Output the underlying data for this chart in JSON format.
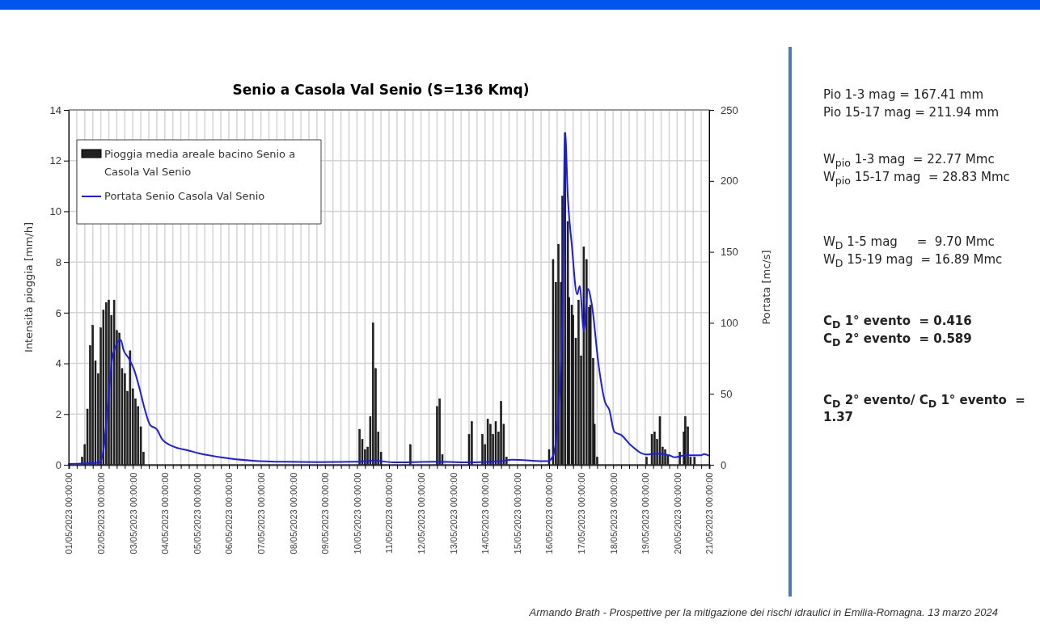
{
  "chart_data": {
    "type": "bar",
    "title": "Senio a Casola Val Senio (S=136 Kmq)",
    "ylabel": "Intensità pioggia  [mm/h]",
    "y2label": "Portata [mc/s]",
    "xlim": [
      "2023-05-01",
      "2023-05-21"
    ],
    "xticks": [
      {
        "value": "2023-05-01",
        "label": "01/05/2023 00:00:00"
      },
      {
        "value": "2023-05-01T06:00",
        "label": null
      },
      {
        "value": "2023-05-01T12:00",
        "label": null
      },
      {
        "value": "2023-05-01T18:00",
        "label": null
      },
      {
        "value": "2023-05-02",
        "label": "02/05/2023 00:00:00"
      },
      {
        "value": "2023-05-02T06:00",
        "label": null
      },
      {
        "value": "2023-05-02T12:00",
        "label": null
      },
      {
        "value": "2023-05-02T18:00",
        "label": null
      },
      {
        "value": "2023-05-03",
        "label": "03/05/2023 00:00:00"
      },
      {
        "value": "2023-05-03T06:00",
        "label": null
      },
      {
        "value": "2023-05-03T12:00",
        "label": null
      },
      {
        "value": "2023-05-03T18:00",
        "label": null
      },
      {
        "value": "2023-05-04",
        "label": "04/05/2023 00:00:00"
      },
      {
        "value": "2023-05-04T06:00",
        "label": null
      },
      {
        "value": "2023-05-04T12:00",
        "label": null
      },
      {
        "value": "2023-05-04T18:00",
        "label": null
      },
      {
        "value": "2023-05-05",
        "label": "05/05/2023 00:00:00"
      },
      {
        "value": "2023-05-05T06:00",
        "label": null
      },
      {
        "value": "2023-05-05T12:00",
        "label": null
      },
      {
        "value": "2023-05-05T18:00",
        "label": null
      },
      {
        "value": "2023-05-06",
        "label": "06/05/2023 00:00:00"
      },
      {
        "value": "2023-05-06T06:00",
        "label": null
      },
      {
        "value": "2023-05-06T12:00",
        "label": null
      },
      {
        "value": "2023-05-06T18:00",
        "label": null
      },
      {
        "value": "2023-05-07",
        "label": "07/05/2023 00:00:00"
      },
      {
        "value": "2023-05-07T06:00",
        "label": null
      },
      {
        "value": "2023-05-07T12:00",
        "label": null
      },
      {
        "value": "2023-05-07T18:00",
        "label": null
      },
      {
        "value": "2023-05-08",
        "label": "08/05/2023 00:00:00"
      },
      {
        "value": "2023-05-08T06:00",
        "label": null
      },
      {
        "value": "2023-05-08T12:00",
        "label": null
      },
      {
        "value": "2023-05-08T18:00",
        "label": null
      },
      {
        "value": "2023-05-09",
        "label": "09/05/2023 00:00:00"
      },
      {
        "value": "2023-05-09T06:00",
        "label": null
      },
      {
        "value": "2023-05-09T12:00",
        "label": null
      },
      {
        "value": "2023-05-09T18:00",
        "label": null
      },
      {
        "value": "2023-05-10",
        "label": "10/05/2023 00:00:00"
      },
      {
        "value": "2023-05-10T06:00",
        "label": null
      },
      {
        "value": "2023-05-10T12:00",
        "label": null
      },
      {
        "value": "2023-05-10T18:00",
        "label": null
      },
      {
        "value": "2023-05-11",
        "label": "11/05/2023 00:00:00"
      },
      {
        "value": "2023-05-11T06:00",
        "label": null
      },
      {
        "value": "2023-05-11T12:00",
        "label": null
      },
      {
        "value": "2023-05-11T18:00",
        "label": null
      },
      {
        "value": "2023-05-12",
        "label": "12/05/2023 00:00:00"
      },
      {
        "value": "2023-05-12T06:00",
        "label": null
      },
      {
        "value": "2023-05-12T12:00",
        "label": null
      },
      {
        "value": "2023-05-12T18:00",
        "label": null
      },
      {
        "value": "2023-05-13",
        "label": "13/05/2023 00:00:00"
      },
      {
        "value": "2023-05-13T06:00",
        "label": null
      },
      {
        "value": "2023-05-13T12:00",
        "label": null
      },
      {
        "value": "2023-05-13T18:00",
        "label": null
      },
      {
        "value": "2023-05-14",
        "label": "14/05/2023 00:00:00"
      },
      {
        "value": "2023-05-14T06:00",
        "label": null
      },
      {
        "value": "2023-05-14T12:00",
        "label": null
      },
      {
        "value": "2023-05-14T18:00",
        "label": null
      },
      {
        "value": "2023-05-15",
        "label": "15/05/2023 00:00:00"
      },
      {
        "value": "2023-05-15T06:00",
        "label": null
      },
      {
        "value": "2023-05-15T12:00",
        "label": null
      },
      {
        "value": "2023-05-15T18:00",
        "label": null
      },
      {
        "value": "2023-05-16",
        "label": "16/05/2023 00:00:00"
      },
      {
        "value": "2023-05-16T06:00",
        "label": null
      },
      {
        "value": "2023-05-16T12:00",
        "label": null
      },
      {
        "value": "2023-05-16T18:00",
        "label": null
      },
      {
        "value": "2023-05-17",
        "label": "17/05/2023 00:00:00"
      },
      {
        "value": "2023-05-17T06:00",
        "label": null
      },
      {
        "value": "2023-05-17T12:00",
        "label": null
      },
      {
        "value": "2023-05-17T18:00",
        "label": null
      },
      {
        "value": "2023-05-18",
        "label": "18/05/2023 00:00:00"
      },
      {
        "value": "2023-05-18T06:00",
        "label": null
      },
      {
        "value": "2023-05-18T12:00",
        "label": null
      },
      {
        "value": "2023-05-18T18:00",
        "label": null
      },
      {
        "value": "2023-05-19",
        "label": "19/05/2023 00:00:00"
      },
      {
        "value": "2023-05-19T06:00",
        "label": null
      },
      {
        "value": "2023-05-19T12:00",
        "label": null
      },
      {
        "value": "2023-05-19T18:00",
        "label": null
      },
      {
        "value": "2023-05-20",
        "label": "20/05/2023 00:00:00"
      },
      {
        "value": "2023-05-20T06:00",
        "label": null
      },
      {
        "value": "2023-05-20T12:00",
        "label": null
      },
      {
        "value": "2023-05-20T18:00",
        "label": null
      },
      {
        "value": "2023-05-21",
        "label": "21/05/2023 00:00:00"
      }
    ],
    "ylim": [
      0,
      14
    ],
    "yticks": [
      0,
      2,
      4,
      6,
      8,
      10,
      12,
      14
    ],
    "y2lim": [
      0,
      250
    ],
    "y2ticks": [
      0,
      50,
      100,
      150,
      200,
      250
    ],
    "grid": true,
    "legend": "top left",
    "series": [
      {
        "name": "Pioggia media areale bacino Senio a Casola Val Senio",
        "color": "#222222",
        "x": [
          "2023-05-01T10:00",
          "2023-05-01T12:00",
          "2023-05-01T14:00",
          "2023-05-01T16:00",
          "2023-05-01T18:00",
          "2023-05-01T20:00",
          "2023-05-01T22:00",
          "2023-05-02T00:00",
          "2023-05-02T02:00",
          "2023-05-02T04:00",
          "2023-05-02T06:00",
          "2023-05-02T08:00",
          "2023-05-02T10:00",
          "2023-05-02T12:00",
          "2023-05-02T14:00",
          "2023-05-02T16:00",
          "2023-05-02T18:00",
          "2023-05-02T20:00",
          "2023-05-02T22:00",
          "2023-05-03T00:00",
          "2023-05-03T02:00",
          "2023-05-03T04:00",
          "2023-05-03T06:00",
          "2023-05-03T08:00",
          "2023-05-10T02:00",
          "2023-05-10T04:00",
          "2023-05-10T06:00",
          "2023-05-10T08:00",
          "2023-05-10T10:00",
          "2023-05-10T12:00",
          "2023-05-10T14:00",
          "2023-05-10T16:00",
          "2023-05-10T18:00",
          "2023-05-11T16:00",
          "2023-05-12T12:00",
          "2023-05-12T14:00",
          "2023-05-12T16:00",
          "2023-05-13T12:00",
          "2023-05-13T14:00",
          "2023-05-13T22:00",
          "2023-05-14T00:00",
          "2023-05-14T02:00",
          "2023-05-14T04:00",
          "2023-05-14T06:00",
          "2023-05-14T08:00",
          "2023-05-14T10:00",
          "2023-05-14T12:00",
          "2023-05-14T14:00",
          "2023-05-14T16:00",
          "2023-05-16T00:00",
          "2023-05-16T03:00",
          "2023-05-16T05:00",
          "2023-05-16T07:00",
          "2023-05-16T09:00",
          "2023-05-16T10:00",
          "2023-05-16T12:00",
          "2023-05-16T14:00",
          "2023-05-16T15:00",
          "2023-05-16T17:00",
          "2023-05-16T18:00",
          "2023-05-16T20:00",
          "2023-05-16T22:00",
          "2023-05-17T00:00",
          "2023-05-17T02:00",
          "2023-05-17T04:00",
          "2023-05-17T06:00",
          "2023-05-17T07:00",
          "2023-05-17T09:00",
          "2023-05-17T10:00",
          "2023-05-17T12:00",
          "2023-05-19T01:00",
          "2023-05-19T05:00",
          "2023-05-19T07:00",
          "2023-05-19T09:00",
          "2023-05-19T11:00",
          "2023-05-19T13:00",
          "2023-05-19T15:00",
          "2023-05-19T17:00",
          "2023-05-20T02:00",
          "2023-05-20T05:00",
          "2023-05-20T06:00",
          "2023-05-20T08:00",
          "2023-05-20T10:00",
          "2023-05-20T13:00"
        ],
        "values": [
          0.3,
          0.8,
          2.2,
          4.7,
          5.5,
          4.1,
          3.6,
          5.4,
          6.1,
          6.4,
          6.5,
          5.9,
          6.5,
          5.3,
          5.2,
          3.8,
          3.6,
          2.9,
          4.5,
          3.0,
          2.6,
          2.3,
          1.5,
          0.5,
          1.4,
          1.0,
          0.6,
          0.7,
          1.9,
          5.6,
          3.8,
          1.3,
          0.5,
          0.8,
          2.3,
          2.6,
          0.4,
          1.2,
          1.7,
          1.2,
          0.8,
          1.8,
          1.6,
          1.2,
          1.7,
          1.3,
          2.5,
          1.6,
          0.3,
          0.6,
          8.1,
          7.2,
          8.7,
          7.2,
          10.6,
          13.1,
          9.6,
          6.6,
          6.3,
          5.9,
          5.0,
          6.5,
          4.3,
          8.6,
          8.1,
          6.2,
          6.3,
          4.2,
          1.6,
          0.3,
          0.3,
          1.2,
          1.3,
          1.0,
          1.9,
          0.7,
          0.6,
          0.4,
          0.5,
          1.3,
          1.9,
          1.5,
          0.3,
          0.3
        ]
      },
      {
        "type": "line",
        "axis": "y2",
        "name": "Portata Senio Casola Val Senio",
        "color": "#1a1aff",
        "x": [
          "2023-05-01T00:00",
          "2023-05-01T23:00",
          "2023-05-02T02:00",
          "2023-05-02T05:00",
          "2023-05-02T09:00",
          "2023-05-02T15:00",
          "2023-05-02T17:00",
          "2023-05-02T21:00",
          "2023-05-03T01:00",
          "2023-05-03T05:00",
          "2023-05-03T09:00",
          "2023-05-03T13:00",
          "2023-05-03T18:00",
          "2023-05-03T22:00",
          "2023-05-04T06:00",
          "2023-05-04T18:00",
          "2023-05-05T02:00",
          "2023-05-05T18:00",
          "2023-05-06T18:00",
          "2023-05-07T18:00",
          "2023-05-08T19:00",
          "2023-05-09T23:00",
          "2023-05-10T13:00",
          "2023-05-11T03:00",
          "2023-05-12T11:00",
          "2023-05-13T16:00",
          "2023-05-14T12:00",
          "2023-05-14T20:00",
          "2023-05-15T23:00",
          "2023-05-16T03:00",
          "2023-05-16T07:00",
          "2023-05-16T10:00",
          "2023-05-16T12:00",
          "2023-05-16T14:00",
          "2023-05-16T17:00",
          "2023-05-16T21:00",
          "2023-05-16T23:00",
          "2023-05-17T02:00",
          "2023-05-17T05:00",
          "2023-05-17T08:00",
          "2023-05-17T13:00",
          "2023-05-17T18:00",
          "2023-05-17T21:00",
          "2023-05-18T01:00",
          "2023-05-18T06:00",
          "2023-05-18T13:00",
          "2023-05-19T01:00",
          "2023-05-19T09:00",
          "2023-05-19T18:00",
          "2023-05-19T22:00",
          "2023-05-20T06:00",
          "2023-05-20T18:00",
          "2023-05-20T20:00",
          "2023-05-21T00:00"
        ],
        "values": [
          0.5,
          1.5,
          10,
          39,
          77,
          88,
          81,
          75,
          67,
          54,
          39,
          28,
          25,
          18,
          13,
          10,
          8,
          5.3,
          2.9,
          2.1,
          1.9,
          2.1,
          3.0,
          1.7,
          2.1,
          1.7,
          2.5,
          3.6,
          2.5,
          6.3,
          39,
          105,
          234,
          189,
          155,
          120,
          126,
          94,
          124,
          113,
          71,
          44,
          39,
          23,
          21,
          14,
          7.2,
          7.8,
          6.7,
          5.3,
          6.7,
          6.7,
          7.6,
          6.3
        ]
      }
    ],
    "annotations": [
      "Pio 1-3 mag = 167.41 mm",
      "Pio 15-17 mag = 211.94 mm",
      "W$_{pio}$ 1-3 mag  = 22.77 Mmc",
      "W$_{pio}$ 15-17 mag  = 28.83 Mmc",
      "W$_{D}$ 1-5 mag     =  9.70 Mmc",
      "W$_{D}$ 15-19 mag  = 16.89 Mmc",
      "C$_{D}$ 1° evento  = 0.416",
      "C$_{D}$ 2° evento  = 0.589",
      "C$_{D}$ 2° evento/ C$_{D}$ 1° evento  = 1.37",
      "Armando Brath - Prospettive per la mitigazione dei rischi idraulici in Emilia-Romagna. 13 marzo 2024"
    ]
  }
}
